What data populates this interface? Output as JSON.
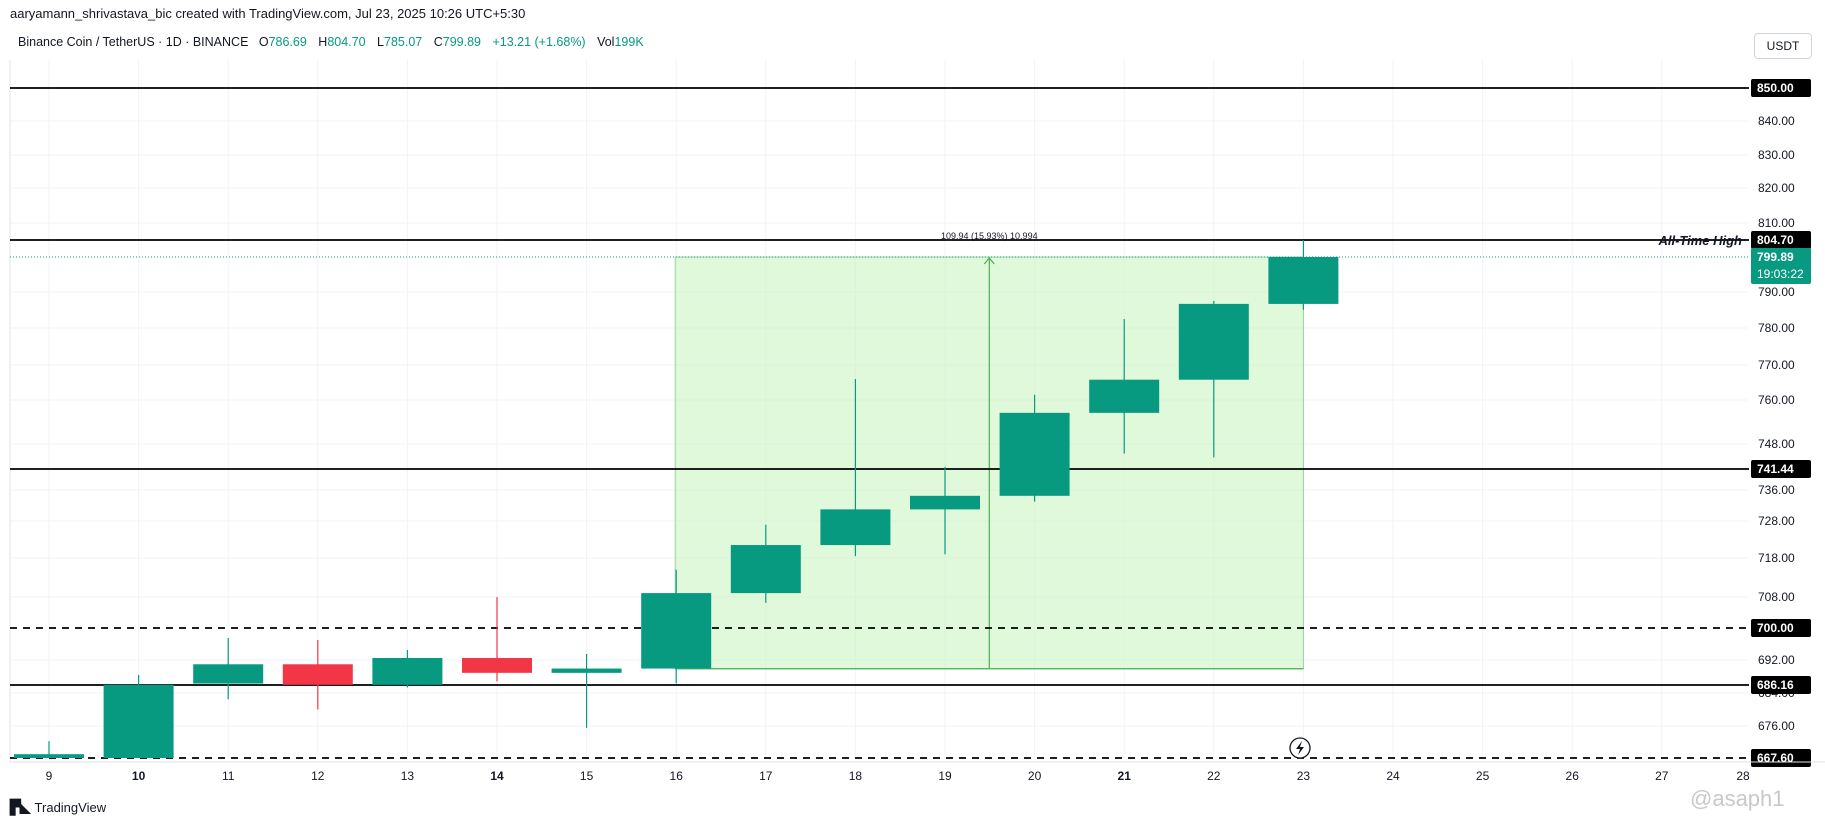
{
  "attribution": "aaryamann_shrivastava_bic created with TradingView.com, Jul 23, 2025 10:26 UTC+5:30",
  "legend": {
    "symbol": "Binance Coin / TetherUS · 1D · BINANCE",
    "o_label": "O",
    "o_value": "786.69",
    "h_label": "H",
    "h_value": "804.70",
    "l_label": "L",
    "l_value": "785.07",
    "c_label": "C",
    "c_value": "799.89",
    "change": "+13.21 (+1.68%)",
    "vol_label": "Vol",
    "vol_value": "199K"
  },
  "currency_button": "USDT",
  "footer": {
    "logo_icon": "tradingview-logo-icon",
    "logo_text": "TradingView"
  },
  "watermark": "@asaph1",
  "colors": {
    "up": "#089981",
    "down": "#f23645",
    "range_fill": "#ccf5c2",
    "range_line": "#4caf50",
    "level_line": "#000000",
    "price_tag": "#089981"
  },
  "chart_data": {
    "type": "candlestick",
    "x_tick_labels": [
      "9",
      "10",
      "11",
      "12",
      "13",
      "14",
      "15",
      "16",
      "17",
      "18",
      "19",
      "20",
      "21",
      "22",
      "23",
      "24",
      "25",
      "26",
      "27",
      "28"
    ],
    "bold_ticks": [
      "10",
      "14",
      "21"
    ],
    "y_tick_labels": [
      "840.00",
      "830.00",
      "820.00",
      "810.00",
      "790.00",
      "780.00",
      "770.00",
      "760.00",
      "748.00",
      "736.00",
      "728.00",
      "718.00",
      "708.00",
      "692.00",
      "684.00",
      "676.00"
    ],
    "candles": [
      {
        "day": 9,
        "open": 667.6,
        "high": 672.0,
        "low": 667.6,
        "close": 668.6
      },
      {
        "day": 10,
        "open": 667.6,
        "high": 688.5,
        "low": 667.6,
        "close": 686.2
      },
      {
        "day": 11,
        "open": 686.5,
        "high": 697.5,
        "low": 682.5,
        "close": 691.0
      },
      {
        "day": 12,
        "open": 691.0,
        "high": 697.0,
        "low": 680.0,
        "close": 686.2
      },
      {
        "day": 13,
        "open": 686.2,
        "high": 694.5,
        "low": 685.5,
        "close": 692.5
      },
      {
        "day": 14,
        "open": 692.5,
        "high": 708.0,
        "low": 687.0,
        "close": 689.0
      },
      {
        "day": 15,
        "open": 689.0,
        "high": 693.5,
        "low": 675.5,
        "close": 690.0
      },
      {
        "day": 16,
        "open": 690.0,
        "high": 715.0,
        "low": 686.5,
        "close": 709.0
      },
      {
        "day": 17,
        "open": 709.0,
        "high": 727.0,
        "low": 706.5,
        "close": 721.5
      },
      {
        "day": 18,
        "open": 721.5,
        "high": 766.0,
        "low": 718.5,
        "close": 731.0
      },
      {
        "day": 19,
        "open": 731.0,
        "high": 742.0,
        "low": 719.0,
        "close": 734.5
      },
      {
        "day": 20,
        "open": 734.5,
        "high": 761.5,
        "low": 733.0,
        "close": 756.5
      },
      {
        "day": 21,
        "open": 756.5,
        "high": 782.5,
        "low": 745.5,
        "close": 765.8
      },
      {
        "day": 22,
        "open": 765.8,
        "high": 787.5,
        "low": 744.5,
        "close": 786.7
      },
      {
        "day": 23,
        "open": 786.69,
        "high": 804.7,
        "low": 785.07,
        "close": 799.89
      }
    ],
    "levels": [
      {
        "price": 850.0,
        "label": "850.00",
        "style": "solid"
      },
      {
        "price": 804.7,
        "label": "804.70",
        "style": "solid",
        "annotation": "All-Time High"
      },
      {
        "price": 741.44,
        "label": "741.44",
        "style": "solid"
      },
      {
        "price": 700.0,
        "label": "700.00",
        "style": "dashed"
      },
      {
        "price": 686.16,
        "label": "686.16",
        "style": "solid"
      },
      {
        "price": 667.6,
        "label": "667.60",
        "style": "dashed"
      }
    ],
    "current_price": {
      "price": 799.89,
      "label": "799.89",
      "countdown": "19:03:22"
    },
    "price_range": {
      "from_day": 16,
      "to_day": 23,
      "from_price": 689.95,
      "to_price": 799.89,
      "label": "109.94 (15.93%) 10,994"
    }
  }
}
